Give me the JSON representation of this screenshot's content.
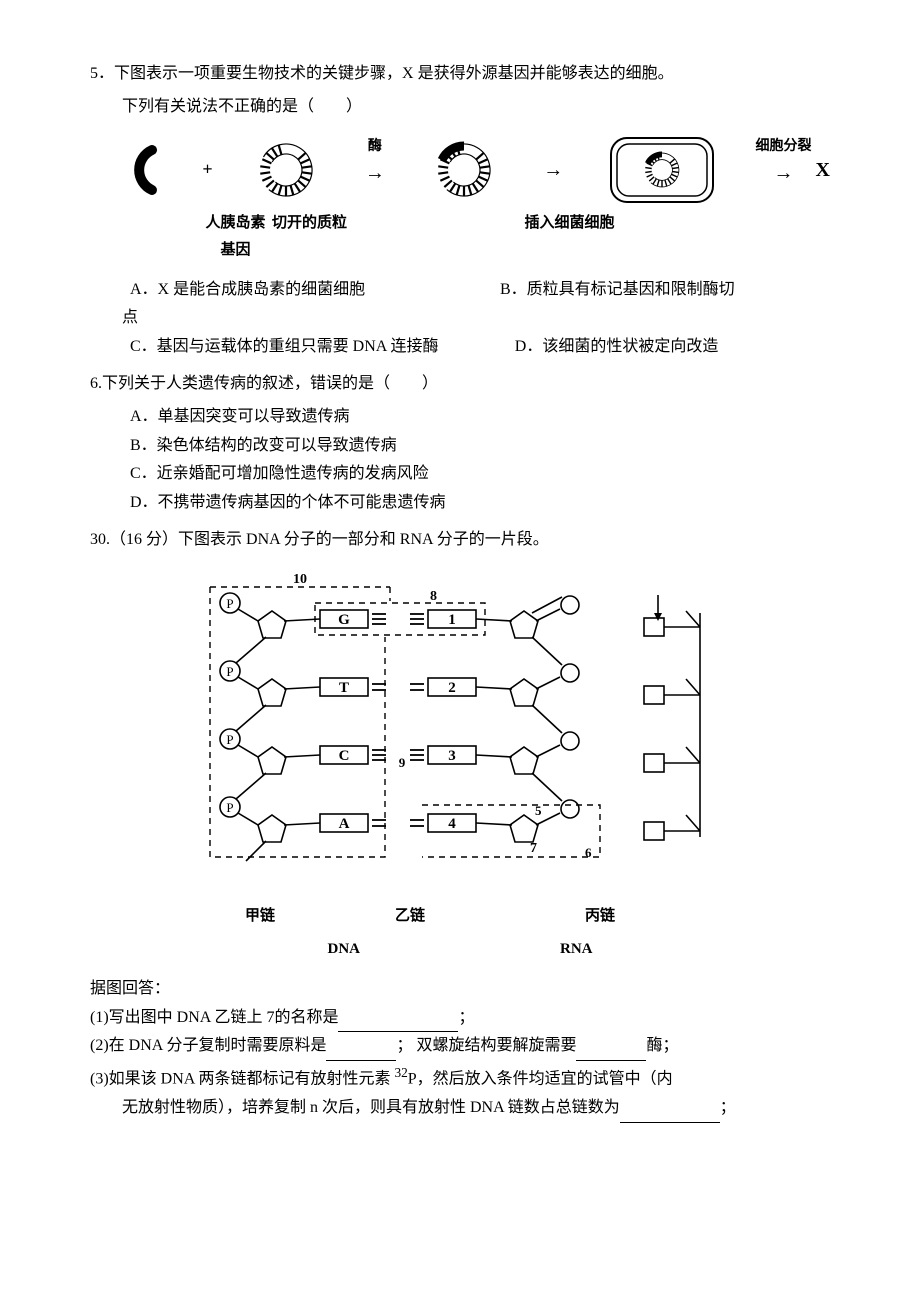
{
  "q5": {
    "number": "5．",
    "stem_line1": "下图表示一项重要生物技术的关键步骤，X 是获得外源基因并能够表达的细胞。",
    "stem_line2": "下列有关说法不正确的是（　　）",
    "diagram": {
      "plus": "+",
      "enzyme_label": "酶",
      "arrow": "→",
      "cell_division_label": "细胞分裂",
      "x_label": "X",
      "label_gene": "人胰岛素基因",
      "label_plasmid": "切开的质粒",
      "label_bacteria": "插入细菌细胞",
      "colors": {
        "black": "#000000",
        "white": "#ffffff"
      }
    },
    "opts": {
      "A": "A．X 是能合成胰岛素的细菌细胞",
      "B": "B．质粒具有标记基因和限制酶切",
      "B_cont": "点",
      "C": "C．基因与运载体的重组只需要 DNA 连接酶",
      "D": "D．该细菌的性状被定向改造"
    }
  },
  "q6": {
    "number": "6.",
    "stem": "下列关于人类遗传病的叙述，错误的是（　　）",
    "opts": {
      "A": "A．单基因突变可以导致遗传病",
      "B": "B．染色体结构的改变可以导致遗传病",
      "C": "C．近亲婚配可增加隐性遗传病的发病风险",
      "D": "D．不携带遗传病基因的个体不可能患遗传病"
    }
  },
  "q30": {
    "number": "30.",
    "points": "（16 分）",
    "stem": "下图表示 DNA 分子的一部分和 RNA 分子的一片段。",
    "diagram": {
      "bases_left": [
        "G",
        "T",
        "C",
        "A"
      ],
      "bases_right": [
        "1",
        "2",
        "3",
        "4"
      ],
      "labels": {
        "ten": "10",
        "eight": "8",
        "nine": "9",
        "seven": "7",
        "five": "5",
        "six": "6"
      },
      "phosphate": "P",
      "chain_labels": {
        "jia": "甲链",
        "yi": "乙链",
        "bing": "丙链"
      },
      "mol_labels": {
        "dna": "DNA",
        "rna": "RNA"
      },
      "colors": {
        "line": "#000000",
        "bg": "#ffffff",
        "text": "#000000"
      },
      "font_size": 14
    },
    "followup": "据图回答：",
    "sub1": {
      "num": "(1)",
      "text_a": "写出图中 DNA 乙链上 7的名称是",
      "text_b": "；"
    },
    "sub2": {
      "num": "(2)",
      "text_a": "在 DNA 分子复制时需要原料是",
      "text_b": "； 双螺旋结构要解旋需要",
      "text_c": "酶；"
    },
    "sub3": {
      "num": "(3)",
      "text_a": "如果该 DNA 两条链都标记有放射性元素 ",
      "iso_pre": "32",
      "iso": "P，然后放入条件均适宜的试管中（内",
      "text_b": "无放射性物质），培养复制 n 次后，则具有放射性 DNA 链数占总链数为",
      "text_c": "；"
    }
  }
}
